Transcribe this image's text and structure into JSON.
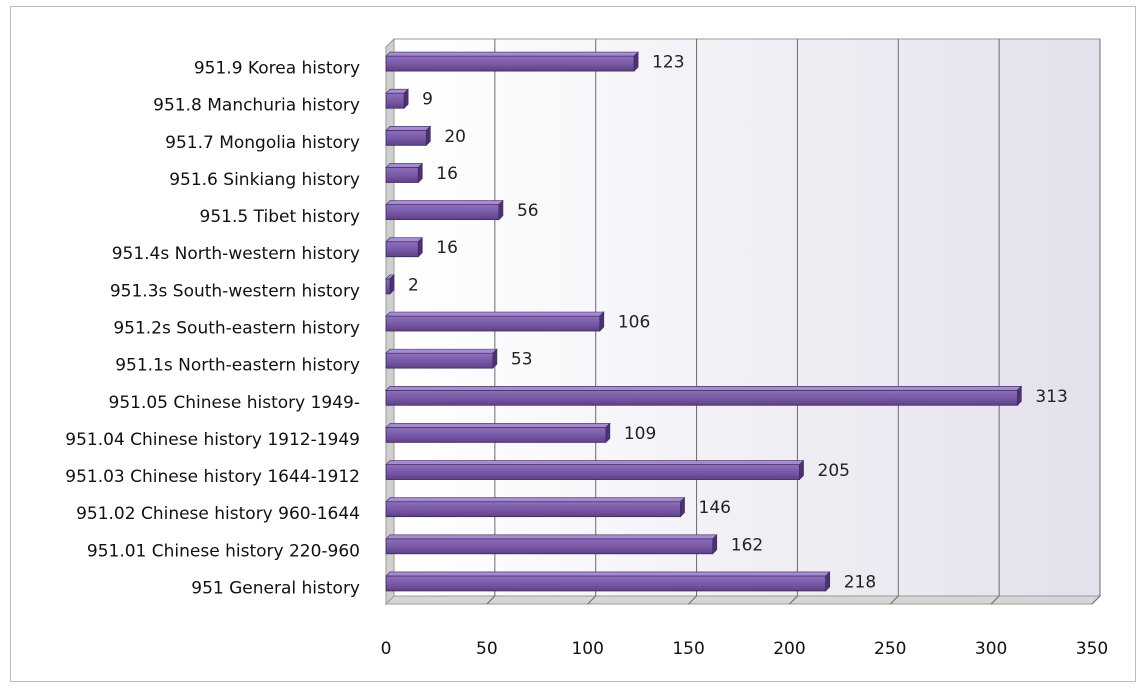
{
  "chart_data": {
    "type": "bar",
    "orientation": "horizontal",
    "title": "",
    "xlabel": "",
    "ylabel": "",
    "xlim": [
      0,
      350
    ],
    "xticks": [
      0,
      50,
      100,
      150,
      200,
      250,
      300,
      350
    ],
    "grid": true,
    "legend": "none",
    "categories": [
      "951.9  Korea history",
      "951.8  Manchuria history",
      "951.7  Mongolia history",
      "951.6  Sinkiang history",
      "951.5  Tibet history",
      "951.4s  North-western history",
      "951.3s  South-western history",
      "951.2s  South-eastern history",
      "951.1s  North-eastern history",
      "951.05  Chinese history 1949-",
      "951.04  Chinese history 1912-1949",
      "951.03  Chinese history 1644-1912",
      "951.02  Chinese history 960-1644",
      "951.01  Chinese history 220-960",
      "951  General history"
    ],
    "values": [
      123,
      9,
      20,
      16,
      56,
      16,
      2,
      106,
      53,
      313,
      109,
      205,
      146,
      162,
      218
    ],
    "colors": {
      "bar": "#7b5ca8",
      "bar_top": "#a58bd0",
      "bar_side": "#4b3270",
      "wall": "#e9e6ef",
      "grid": "#6b6b6b"
    }
  }
}
